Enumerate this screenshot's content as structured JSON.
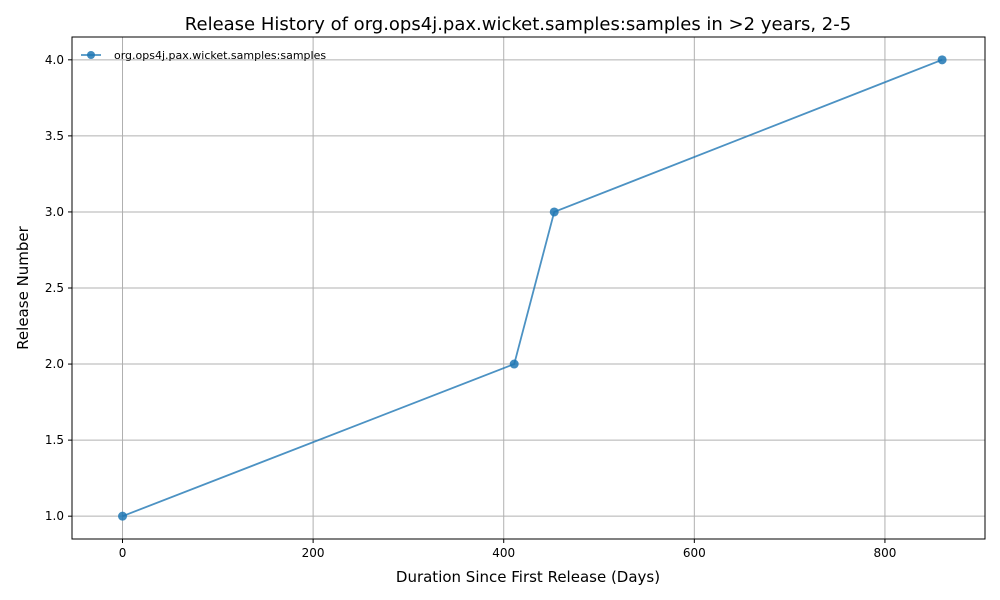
{
  "chart_data": {
    "type": "line",
    "title": "Release History of org.ops4j.pax.wicket.samples:samples in >2 years, 2-5",
    "xlabel": "Duration Since First Release (Days)",
    "ylabel": "Release Number",
    "xlim": [
      -53,
      905
    ],
    "ylim": [
      0.85,
      4.15
    ],
    "x_ticks": [
      0,
      200,
      400,
      600,
      800
    ],
    "y_ticks": [
      1.0,
      1.5,
      2.0,
      2.5,
      3.0,
      3.5,
      4.0
    ],
    "x_tick_labels": [
      "0",
      "200",
      "400",
      "600",
      "800"
    ],
    "y_tick_labels": [
      "1.0",
      "1.5",
      "2.0",
      "2.5",
      "3.0",
      "3.5",
      "4.0"
    ],
    "grid": true,
    "legend_position": "top-left",
    "series": [
      {
        "name": "org.ops4j.pax.wicket.samples:samples",
        "color": "#1f77b4",
        "marker": "circle",
        "x": [
          0,
          411,
          453,
          860
        ],
        "y": [
          1,
          2,
          3,
          4
        ]
      }
    ]
  }
}
